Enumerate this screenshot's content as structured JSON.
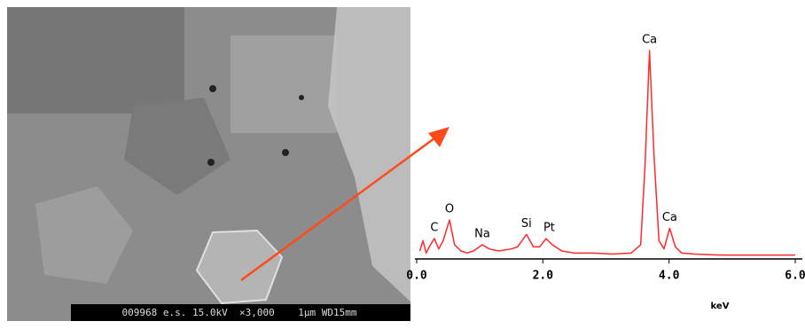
{
  "image": {
    "caption": "009968 e.s. 15.0kV  ×3,000    1μm WD15mm"
  },
  "chart_data": {
    "type": "line",
    "x": [
      0.05,
      0.1,
      0.15,
      0.2,
      0.28,
      0.35,
      0.42,
      0.52,
      0.6,
      0.7,
      0.8,
      0.9,
      1.04,
      1.15,
      1.3,
      1.5,
      1.6,
      1.74,
      1.85,
      1.95,
      2.05,
      2.15,
      2.3,
      2.5,
      2.8,
      3.1,
      3.4,
      3.55,
      3.62,
      3.69,
      3.76,
      3.84,
      3.92,
      4.01,
      4.1,
      4.2,
      4.4,
      4.8,
      5.2,
      5.6,
      6.0
    ],
    "series": [
      {
        "color": "#ff2a2a",
        "values": [
          3,
          8,
          2,
          5,
          9,
          4,
          8,
          18,
          6,
          3,
          2,
          3,
          6,
          4,
          3,
          4,
          5,
          11,
          5,
          5,
          9,
          6,
          3,
          2,
          2,
          1.5,
          2,
          6,
          45,
          100,
          50,
          8,
          4,
          14,
          5,
          2,
          1.5,
          1,
          1,
          1,
          1
        ]
      }
    ],
    "xlim": [
      0,
      6
    ],
    "ylim": [
      0,
      100
    ],
    "xticks": [
      {
        "value": 0,
        "label": "0.0"
      },
      {
        "value": 2,
        "label": "2.0"
      },
      {
        "value": 4,
        "label": "4.0"
      },
      {
        "value": 6,
        "label": "6.0"
      }
    ],
    "xlabel": "keV",
    "annotations": [
      {
        "text": "C",
        "x": 0.28,
        "y": 9
      },
      {
        "text": "O",
        "x": 0.52,
        "y": 18
      },
      {
        "text": "Na",
        "x": 1.04,
        "y": 6
      },
      {
        "text": "Si",
        "x": 1.74,
        "y": 11
      },
      {
        "text": "Pt",
        "x": 2.1,
        "y": 9
      },
      {
        "text": "Ca",
        "x": 3.69,
        "y": 100
      },
      {
        "text": "Ca",
        "x": 4.01,
        "y": 14
      }
    ]
  }
}
